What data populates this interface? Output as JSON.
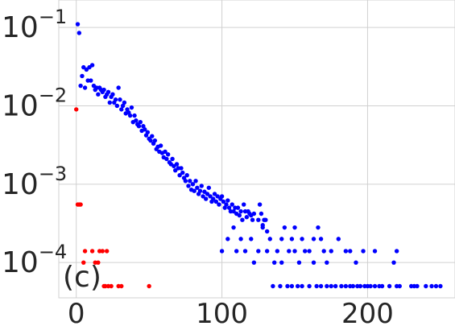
{
  "chart_data": {
    "type": "scatter",
    "panel_label": "(c)",
    "title": "",
    "xlabel": "",
    "ylabel": "",
    "xlim": [
      -12,
      260
    ],
    "ylim_log10": [
      -4.45,
      -0.65
    ],
    "yscale": "log",
    "grid": true,
    "x_ticks": [
      {
        "value": 0,
        "label": "0"
      },
      {
        "value": 100,
        "label": "100"
      },
      {
        "value": 200,
        "label": "200"
      }
    ],
    "y_ticks": [
      {
        "value": 0.1,
        "base": "10",
        "exp": "−1"
      },
      {
        "value": 0.01,
        "base": "10",
        "exp": "−2"
      },
      {
        "value": 0.001,
        "base": "10",
        "exp": "−3"
      },
      {
        "value": 0.0001,
        "base": "10",
        "exp": "−4"
      }
    ],
    "series": [
      {
        "color": "#0000ff",
        "points": [
          [
            1,
            0.11
          ],
          [
            2,
            0.085
          ],
          [
            3,
            0.018
          ],
          [
            4,
            0.024
          ],
          [
            5,
            0.031
          ],
          [
            6,
            0.017
          ],
          [
            7,
            0.029
          ],
          [
            8,
            0.021
          ],
          [
            9,
            0.031
          ],
          [
            10,
            0.021
          ],
          [
            11,
            0.033
          ],
          [
            12,
            0.018
          ],
          [
            13,
            0.016
          ],
          [
            14,
            0.017
          ],
          [
            15,
            0.014
          ],
          [
            16,
            0.017
          ],
          [
            17,
            0.016
          ],
          [
            18,
            0.015
          ],
          [
            19,
            0.016
          ],
          [
            20,
            0.013
          ],
          [
            21,
            0.014
          ],
          [
            22,
            0.015
          ],
          [
            23,
            0.011
          ],
          [
            24,
            0.013
          ],
          [
            25,
            0.014
          ],
          [
            26,
            0.011
          ],
          [
            27,
            0.012
          ],
          [
            28,
            0.01
          ],
          [
            29,
            0.017
          ],
          [
            30,
            0.012
          ],
          [
            31,
            0.009
          ],
          [
            32,
            0.01
          ],
          [
            33,
            0.011
          ],
          [
            34,
            0.008
          ],
          [
            35,
            0.009
          ],
          [
            36,
            0.0082
          ],
          [
            37,
            0.0075
          ],
          [
            38,
            0.0095
          ],
          [
            39,
            0.0062
          ],
          [
            40,
            0.0075
          ],
          [
            41,
            0.0065
          ],
          [
            42,
            0.0058
          ],
          [
            43,
            0.0055
          ],
          [
            44,
            0.0062
          ],
          [
            45,
            0.0048
          ],
          [
            46,
            0.0055
          ],
          [
            47,
            0.005
          ],
          [
            48,
            0.0042
          ],
          [
            49,
            0.0046
          ],
          [
            50,
            0.0038
          ],
          [
            51,
            0.0036
          ],
          [
            52,
            0.0041
          ],
          [
            53,
            0.0033
          ],
          [
            54,
            0.0036
          ],
          [
            55,
            0.0028
          ],
          [
            56,
            0.003
          ],
          [
            57,
            0.0026
          ],
          [
            58,
            0.0031
          ],
          [
            59,
            0.0025
          ],
          [
            60,
            0.0022
          ],
          [
            61,
            0.0026
          ],
          [
            62,
            0.0021
          ],
          [
            63,
            0.0024
          ],
          [
            64,
            0.0019
          ],
          [
            65,
            0.0018
          ],
          [
            66,
            0.0021
          ],
          [
            67,
            0.0017
          ],
          [
            68,
            0.0015
          ],
          [
            69,
            0.0018
          ],
          [
            70,
            0.0016
          ],
          [
            71,
            0.0013
          ],
          [
            72,
            0.0016
          ],
          [
            73,
            0.0014
          ],
          [
            74,
            0.0012
          ],
          [
            75,
            0.0011
          ],
          [
            76,
            0.0013
          ],
          [
            77,
            0.00095
          ],
          [
            78,
            0.0011
          ],
          [
            79,
            0.00085
          ],
          [
            80,
            0.001
          ],
          [
            81,
            0.00082
          ],
          [
            82,
            0.0011
          ],
          [
            83,
            0.0009
          ],
          [
            84,
            0.00075
          ],
          [
            85,
            0.00082
          ],
          [
            86,
            0.00095
          ],
          [
            87,
            0.0007
          ],
          [
            88,
            0.0008
          ],
          [
            89,
            0.00065
          ],
          [
            90,
            0.00075
          ],
          [
            91,
            0.0009
          ],
          [
            92,
            0.0007
          ],
          [
            93,
            0.0006
          ],
          [
            94,
            0.00065
          ],
          [
            95,
            0.00075
          ],
          [
            96,
            0.0006
          ],
          [
            97,
            0.0007
          ],
          [
            98,
            0.00055
          ],
          [
            99,
            0.00065
          ],
          [
            100,
            0.0007
          ],
          [
            101,
            0.0006
          ],
          [
            102,
            0.0005
          ],
          [
            103,
            0.00055
          ],
          [
            104,
            0.00062
          ],
          [
            105,
            0.0005
          ],
          [
            106,
            0.00045
          ],
          [
            107,
            0.00055
          ],
          [
            108,
            0.00045
          ],
          [
            109,
            0.0005
          ],
          [
            110,
            0.00042
          ],
          [
            111,
            0.0005
          ],
          [
            112,
            0.0004
          ],
          [
            113,
            0.00045
          ],
          [
            114,
            0.00035
          ],
          [
            115,
            0.00055
          ],
          [
            116,
            0.00045
          ],
          [
            117,
            0.00038
          ],
          [
            118,
            0.00045
          ],
          [
            119,
            0.00042
          ],
          [
            120,
            0.0004
          ],
          [
            121,
            0.00035
          ],
          [
            122,
            0.00042
          ],
          [
            125,
            0.00035
          ],
          [
            126,
            0.00055
          ],
          [
            127,
            0.00042
          ],
          [
            128,
            0.0003
          ],
          [
            129,
            0.00035
          ],
          [
            130,
            0.00035
          ],
          [
            131,
            0.00025
          ],
          [
            100,
            0.00014
          ],
          [
            104,
            0.0002
          ],
          [
            108,
            0.00028
          ],
          [
            110,
            0.00014
          ],
          [
            113,
            0.0002
          ],
          [
            116,
            0.00014
          ],
          [
            120,
            0.0002
          ],
          [
            122,
            0.0001
          ],
          [
            125,
            0.00014
          ],
          [
            128,
            0.00028
          ],
          [
            131,
            0.00014
          ],
          [
            133,
            0.0002
          ],
          [
            136,
            0.0001
          ],
          [
            138,
            0.00014
          ],
          [
            141,
            0.0002
          ],
          [
            141,
            0.0001
          ],
          [
            143,
            0.00028
          ],
          [
            146,
            0.00014
          ],
          [
            148,
            0.0002
          ],
          [
            150,
            0.00028
          ],
          [
            150,
            0.00014
          ],
          [
            153,
            0.0001
          ],
          [
            155,
            0.0002
          ],
          [
            157,
            0.00014
          ],
          [
            160,
            0.00014
          ],
          [
            163,
            0.0002
          ],
          [
            163,
            0.0001
          ],
          [
            166,
            0.00028
          ],
          [
            168,
            0.0002
          ],
          [
            170,
            0.00014
          ],
          [
            172,
            0.0001
          ],
          [
            175,
            0.00014
          ],
          [
            180,
            0.0002
          ],
          [
            185,
            0.00014
          ],
          [
            188,
            0.00014
          ],
          [
            192,
            0.0001
          ],
          [
            197,
            0.00014
          ],
          [
            205,
            0.00014
          ],
          [
            218,
            0.0001
          ],
          [
            220,
            0.00014
          ],
          [
            135,
            5e-05
          ],
          [
            140,
            5e-05
          ],
          [
            145,
            5e-05
          ],
          [
            148,
            5e-05
          ],
          [
            152,
            5e-05
          ],
          [
            155,
            5e-05
          ],
          [
            160,
            5e-05
          ],
          [
            165,
            5e-05
          ],
          [
            168,
            5e-05
          ],
          [
            172,
            5e-05
          ],
          [
            175,
            5e-05
          ],
          [
            178,
            5e-05
          ],
          [
            182,
            5e-05
          ],
          [
            185,
            5e-05
          ],
          [
            188,
            5e-05
          ],
          [
            190,
            5e-05
          ],
          [
            193,
            5e-05
          ],
          [
            195,
            5e-05
          ],
          [
            198,
            5e-05
          ],
          [
            200,
            5e-05
          ],
          [
            202,
            5e-05
          ],
          [
            205,
            5e-05
          ],
          [
            208,
            5e-05
          ],
          [
            210,
            5e-05
          ],
          [
            215,
            5e-05
          ],
          [
            220,
            5e-05
          ],
          [
            222,
            5e-05
          ],
          [
            230,
            5e-05
          ],
          [
            232,
            5e-05
          ],
          [
            234,
            5e-05
          ],
          [
            240,
            5e-05
          ],
          [
            244,
            5e-05
          ],
          [
            247,
            5e-05
          ],
          [
            250,
            5e-05
          ]
        ]
      },
      {
        "color": "#ff0000",
        "points": [
          [
            0,
            0.009
          ],
          [
            1,
            0.00055
          ],
          [
            2,
            0.00055
          ],
          [
            3,
            0.00055
          ],
          [
            5,
            0.0001
          ],
          [
            6,
            0.00014
          ],
          [
            11,
            0.00014
          ],
          [
            13,
            0.0001
          ],
          [
            15,
            0.0001
          ],
          [
            16,
            0.00014
          ],
          [
            18,
            0.00014
          ],
          [
            19,
            5e-05
          ],
          [
            20,
            5e-05
          ],
          [
            21,
            0.00014
          ],
          [
            22,
            5e-05
          ],
          [
            24,
            5e-05
          ],
          [
            29,
            5e-05
          ],
          [
            31,
            5e-05
          ],
          [
            50,
            5e-05
          ]
        ]
      }
    ]
  }
}
